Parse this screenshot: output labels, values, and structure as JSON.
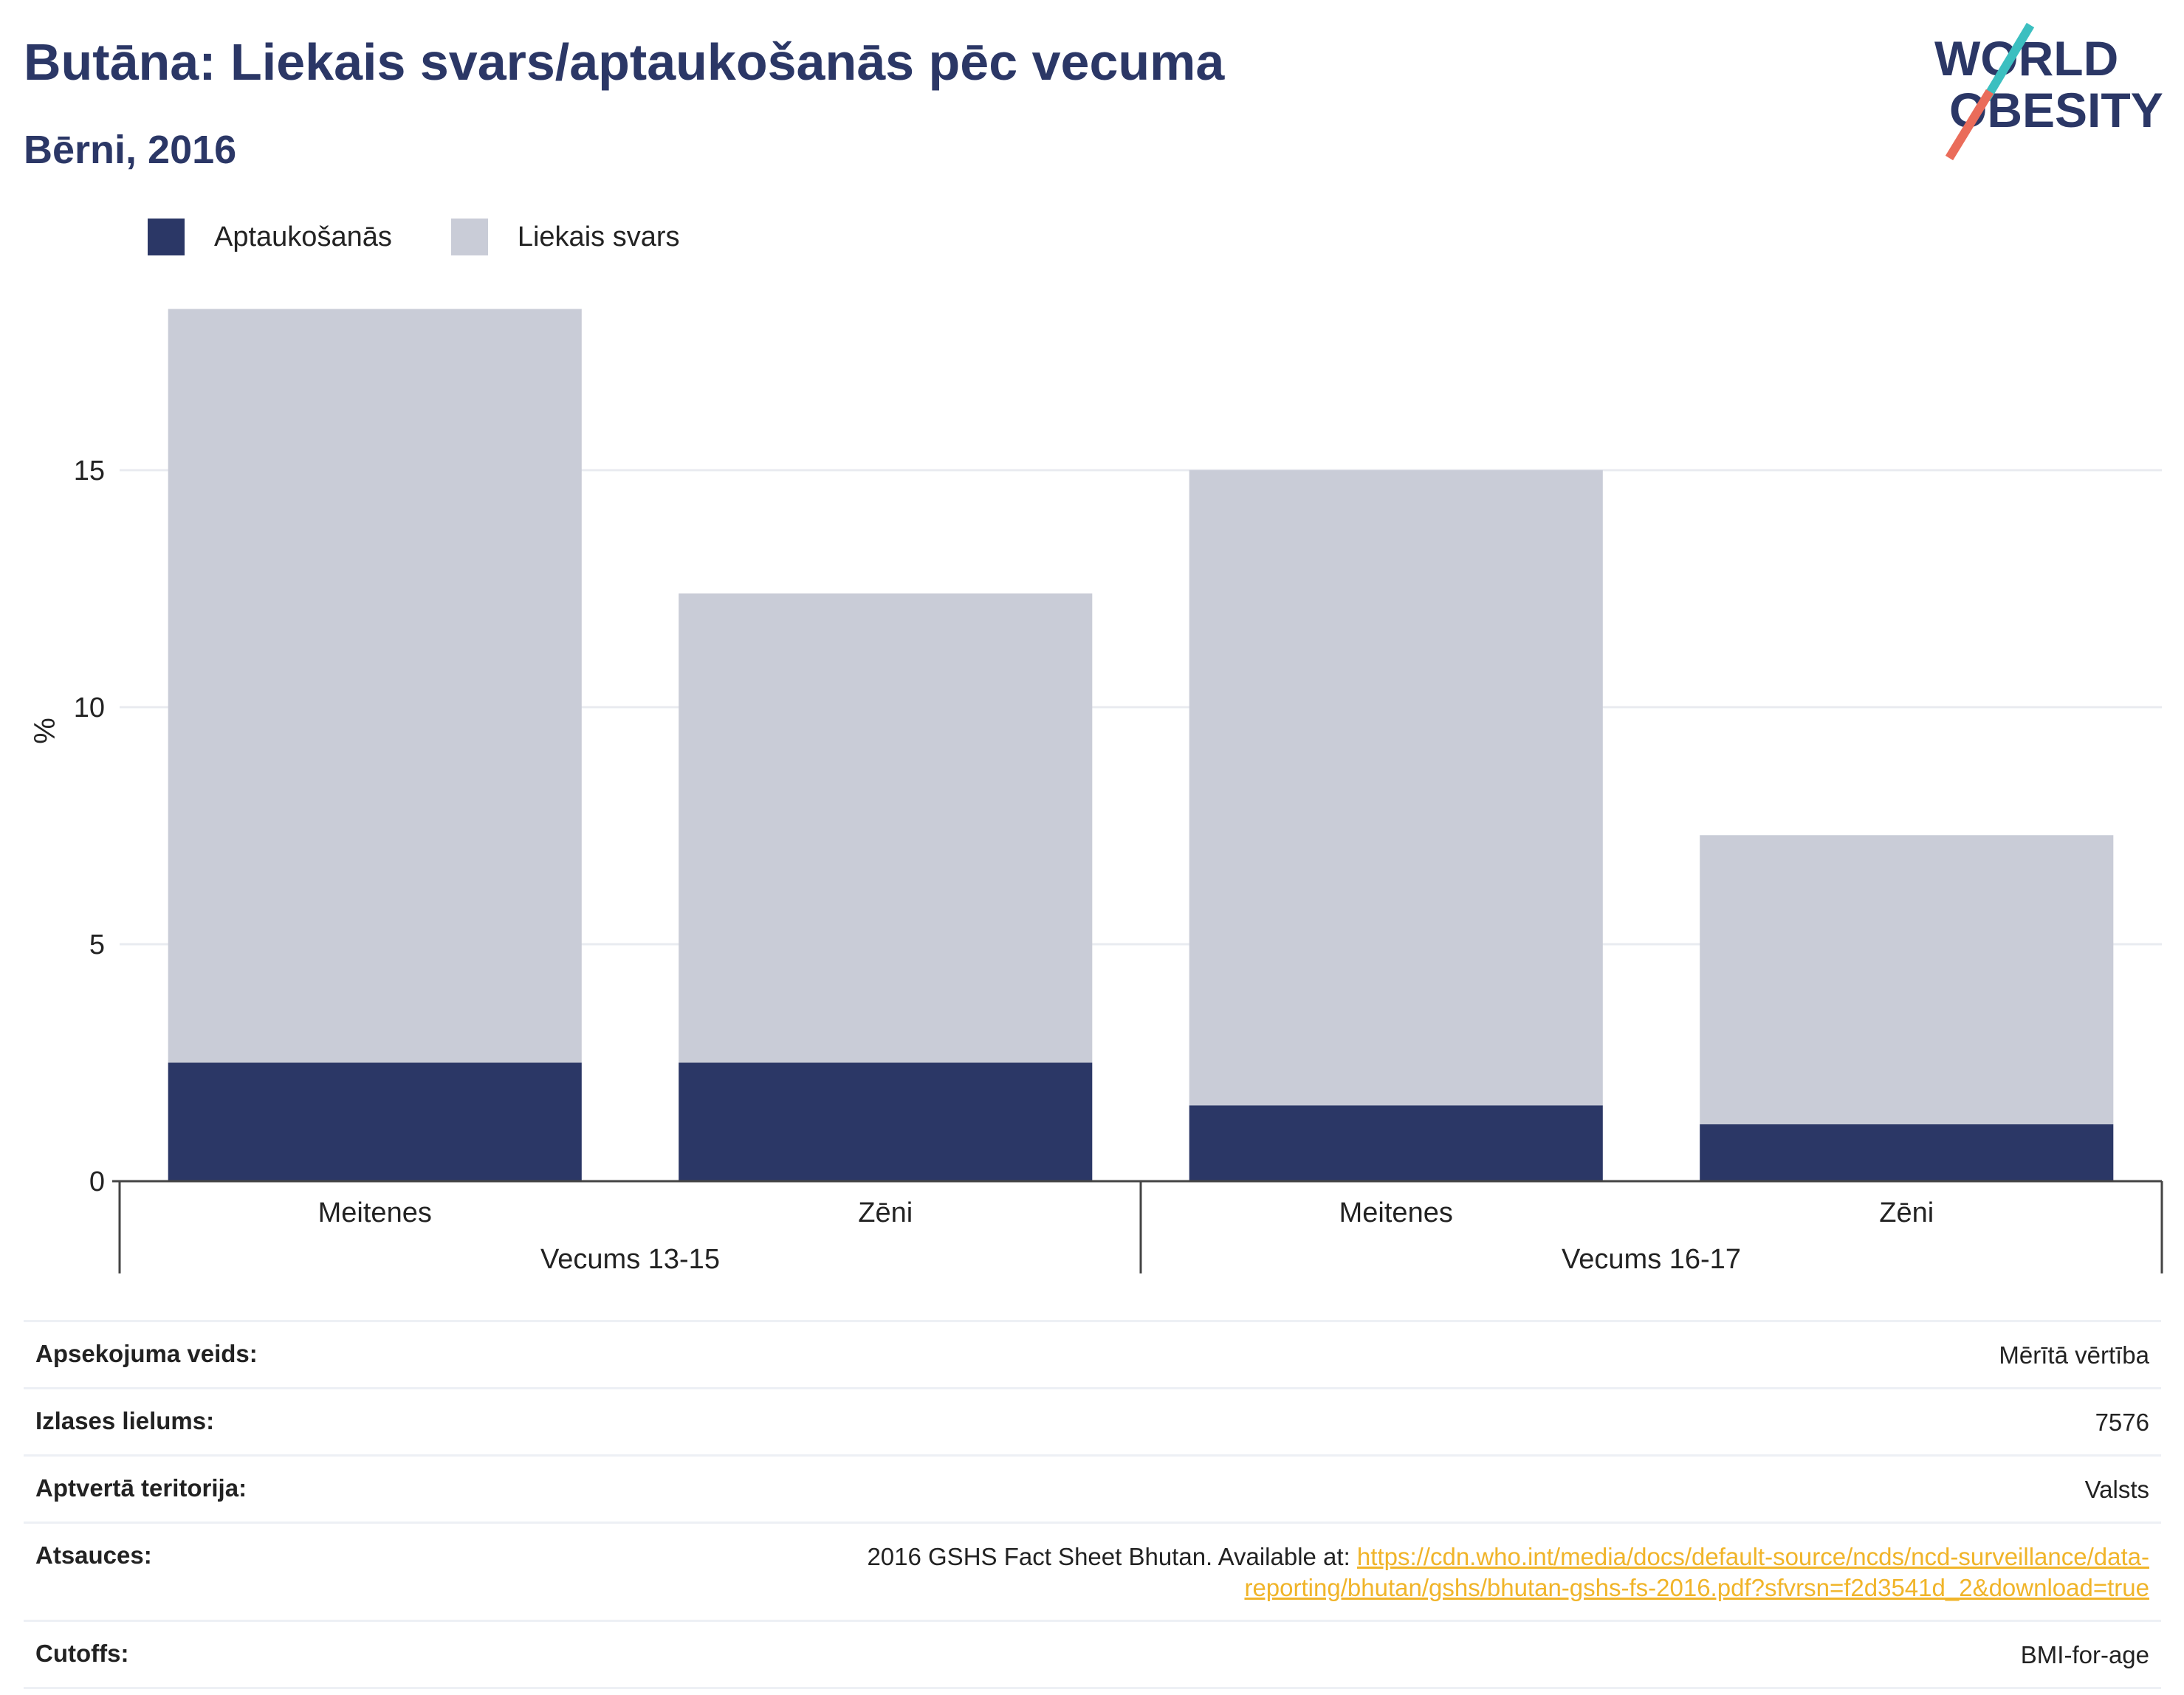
{
  "title": "Butāna: Liekais svars/aptaukošanās pēc vecuma",
  "subtitle": "Bērni, 2016",
  "logo": {
    "line1": "WORLD",
    "line2": "OBESITY"
  },
  "legend": [
    {
      "label": "Aptaukošanās",
      "color": "#2b3766"
    },
    {
      "label": "Liekais svars",
      "color": "#c9ccd7"
    }
  ],
  "chart_data": {
    "type": "bar",
    "stacked": true,
    "ylabel": "%",
    "ylim": [
      0,
      19
    ],
    "yticks": [
      0,
      5,
      10,
      15
    ],
    "grid": true,
    "legend_position": "top-left",
    "groups": [
      {
        "label": "Vecums 13-15",
        "categories": [
          "Meitenes",
          "Zēni"
        ]
      },
      {
        "label": "Vecums 16-17",
        "categories": [
          "Meitenes",
          "Zēni"
        ]
      }
    ],
    "categories": [
      "Meitenes",
      "Zēni",
      "Meitenes",
      "Zēni"
    ],
    "series": [
      {
        "name": "Aptaukošanās",
        "color": "#2b3766",
        "values": [
          2.5,
          2.5,
          1.6,
          1.2
        ]
      },
      {
        "name": "Liekais svars",
        "color": "#c9ccd7",
        "values": [
          15.9,
          9.9,
          13.4,
          6.1
        ]
      }
    ]
  },
  "info": [
    {
      "label": "Apsekojuma veids:",
      "value": "Mērītā vērtība"
    },
    {
      "label": "Izlases lielums:",
      "value": "7576"
    },
    {
      "label": "Aptvertā teritorija:",
      "value": "Valsts"
    },
    {
      "label": "Atsauces:",
      "value": "2016 GSHS Fact Sheet Bhutan. Available at: ",
      "link": "https://cdn.who.int/media/docs/default-source/ncds/ncd-surveillance/data-reporting/bhutan/gshs/bhutan-gshs-fs-2016.pdf?sfvrsn=f2d3541d_2&download=true"
    },
    {
      "label": "Cutoffs:",
      "value": "BMI-for-age"
    }
  ]
}
